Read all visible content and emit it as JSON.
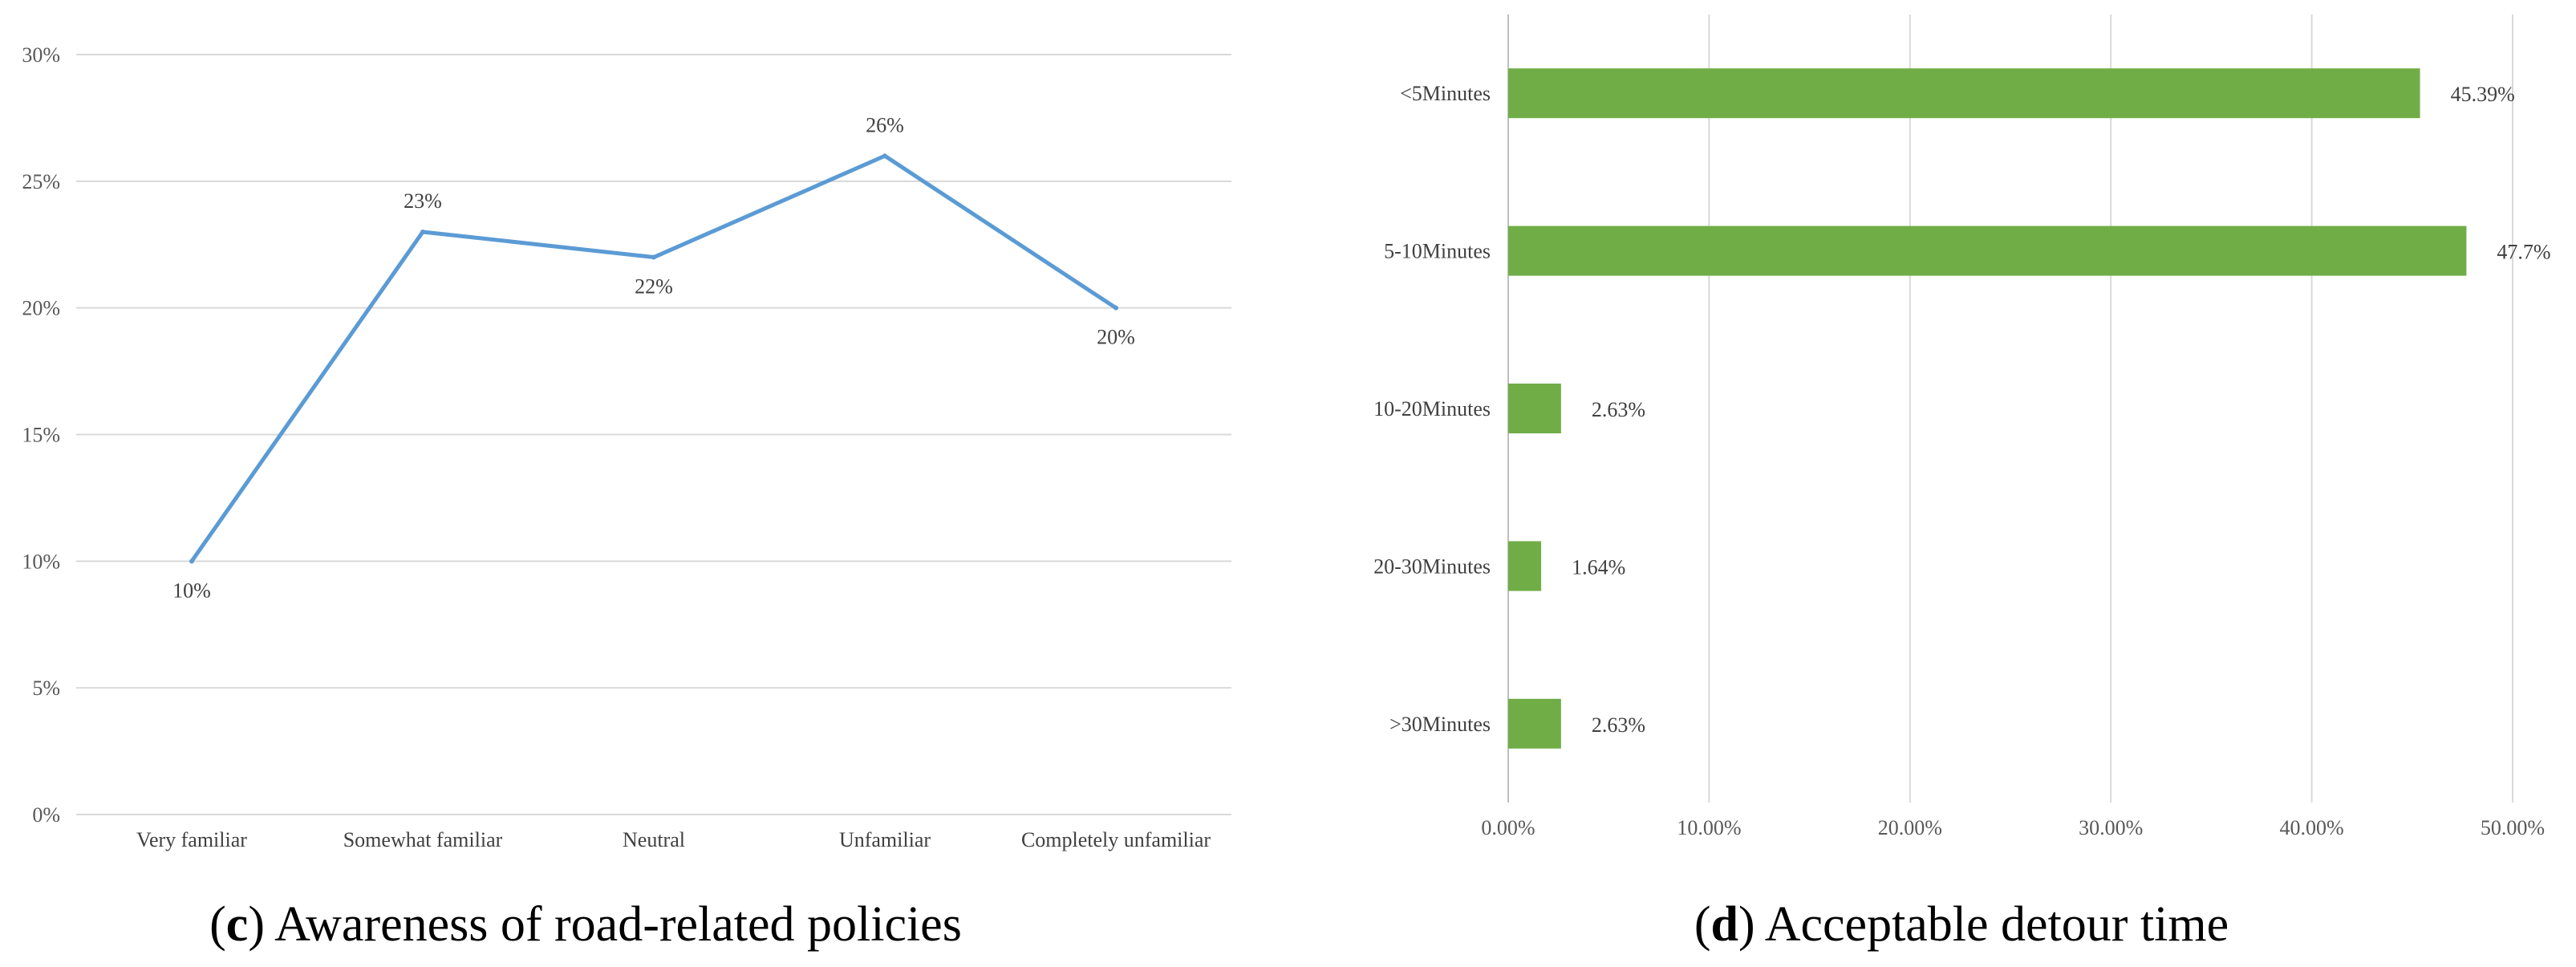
{
  "chart_data": [
    {
      "id": "c",
      "type": "line",
      "caption_letter": "c",
      "caption_text": "Awareness of road-related policies",
      "categories": [
        "Very familiar",
        "Somewhat familiar",
        "Neutral",
        "Unfamiliar",
        "Completely unfamiliar"
      ],
      "values": [
        10,
        23,
        22,
        26,
        20
      ],
      "data_labels": [
        "10%",
        "23%",
        "22%",
        "26%",
        "20%"
      ],
      "yticks": [
        "0%",
        "5%",
        "10%",
        "15%",
        "20%",
        "25%",
        "30%"
      ],
      "ylim": [
        0,
        30
      ],
      "grid": true,
      "line_color": "#5b9bd5"
    },
    {
      "id": "d",
      "type": "bar",
      "orientation": "horizontal",
      "caption_letter": "d",
      "caption_text": "Acceptable detour time",
      "categories": [
        "<5Minutes",
        "5-10Minutes",
        "10-20Minutes",
        "20-30Minutes",
        ">30Minutes"
      ],
      "values": [
        45.39,
        47.7,
        2.63,
        1.64,
        2.63
      ],
      "data_labels": [
        "45.39%",
        "47.7%",
        "2.63%",
        "1.64%",
        "2.63%"
      ],
      "xticks": [
        "0.00%",
        "10.00%",
        "20.00%",
        "30.00%",
        "40.00%",
        "50.00%"
      ],
      "xlim": [
        0,
        50
      ],
      "grid": true,
      "bar_color": "#70ad47"
    }
  ]
}
